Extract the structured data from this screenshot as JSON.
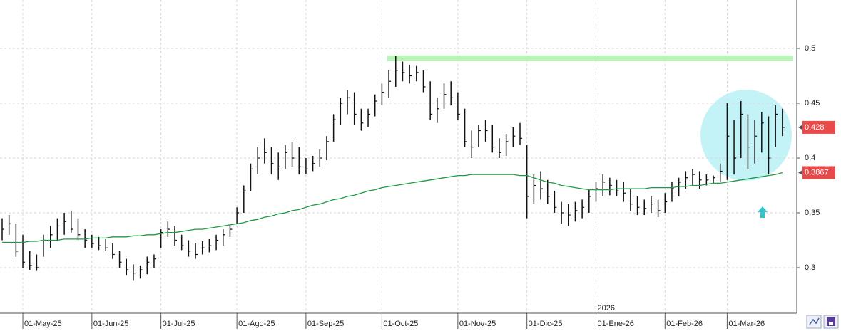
{
  "chart_data": {
    "type": "ohlc",
    "color": "#111111",
    "categories": [
      null,
      null,
      null,
      "01-May-25",
      null,
      null,
      null,
      null,
      null,
      null,
      null,
      null,
      null,
      "01-Jun-25",
      null,
      null,
      null,
      null,
      null,
      null,
      null,
      null,
      null,
      "01-Jul-25",
      null,
      null,
      null,
      null,
      null,
      null,
      null,
      null,
      null,
      null,
      "01-Ago-25",
      null,
      null,
      null,
      null,
      null,
      null,
      null,
      null,
      null,
      "01-Sep-25",
      null,
      null,
      null,
      null,
      null,
      null,
      null,
      null,
      null,
      null,
      "01-Oct-25",
      null,
      null,
      null,
      null,
      null,
      null,
      null,
      null,
      null,
      null,
      "01-Nov-25",
      null,
      null,
      null,
      null,
      null,
      null,
      null,
      null,
      null,
      "01-Dic-25",
      null,
      null,
      null,
      null,
      null,
      null,
      null,
      null,
      null,
      "01-Ene-26",
      null,
      null,
      null,
      null,
      null,
      null,
      null,
      null,
      null,
      "01-Feb-26",
      null,
      null,
      null,
      null,
      null,
      null,
      null,
      null,
      "01-Mar-26",
      null,
      null,
      null,
      null,
      null,
      null,
      null,
      null
    ],
    "high": [
      0.345,
      0.348,
      0.34,
      0.33,
      0.315,
      0.312,
      0.33,
      0.338,
      0.345,
      0.35,
      0.352,
      0.345,
      0.335,
      0.33,
      0.328,
      0.326,
      0.322,
      0.315,
      0.308,
      0.303,
      0.302,
      0.31,
      0.312,
      0.335,
      0.342,
      0.338,
      0.33,
      0.325,
      0.322,
      0.324,
      0.326,
      0.33,
      0.335,
      0.34,
      0.355,
      0.375,
      0.395,
      0.41,
      0.418,
      0.41,
      0.405,
      0.412,
      0.415,
      0.41,
      0.4,
      0.402,
      0.408,
      0.42,
      0.44,
      0.455,
      0.462,
      0.46,
      0.445,
      0.445,
      0.458,
      0.468,
      0.48,
      0.493,
      0.488,
      0.485,
      0.484,
      0.48,
      0.47,
      0.455,
      0.468,
      0.47,
      0.46,
      0.445,
      0.425,
      0.43,
      0.435,
      0.43,
      0.418,
      0.422,
      0.428,
      0.432,
      0.412,
      0.385,
      0.388,
      0.38,
      0.37,
      0.36,
      0.358,
      0.36,
      0.362,
      0.372,
      0.378,
      0.385,
      0.382,
      0.38,
      0.378,
      0.372,
      0.365,
      0.362,
      0.365,
      0.362,
      0.368,
      0.378,
      0.382,
      0.388,
      0.39,
      0.388,
      0.385,
      0.384,
      0.395,
      0.45,
      0.435,
      0.452,
      0.44,
      0.435,
      0.442,
      0.438,
      0.448,
      0.445
    ],
    "low": [
      0.325,
      0.33,
      0.31,
      0.3,
      0.298,
      0.297,
      0.31,
      0.318,
      0.325,
      0.33,
      0.332,
      0.325,
      0.318,
      0.318,
      0.316,
      0.315,
      0.308,
      0.3,
      0.293,
      0.288,
      0.29,
      0.294,
      0.3,
      0.318,
      0.328,
      0.32,
      0.316,
      0.31,
      0.308,
      0.312,
      0.314,
      0.316,
      0.32,
      0.328,
      0.34,
      0.35,
      0.37,
      0.385,
      0.395,
      0.385,
      0.38,
      0.39,
      0.392,
      0.385,
      0.385,
      0.388,
      0.392,
      0.398,
      0.415,
      0.43,
      0.44,
      0.43,
      0.425,
      0.428,
      0.438,
      0.448,
      0.455,
      0.465,
      0.47,
      0.468,
      0.47,
      0.46,
      0.435,
      0.432,
      0.445,
      0.448,
      0.435,
      0.41,
      0.4,
      0.41,
      0.415,
      0.405,
      0.4,
      0.402,
      0.41,
      0.412,
      0.345,
      0.358,
      0.362,
      0.358,
      0.35,
      0.34,
      0.338,
      0.342,
      0.345,
      0.35,
      0.36,
      0.365,
      0.366,
      0.365,
      0.36,
      0.352,
      0.348,
      0.348,
      0.35,
      0.346,
      0.35,
      0.36,
      0.365,
      0.372,
      0.375,
      0.372,
      0.375,
      0.376,
      0.378,
      0.38,
      0.385,
      0.4,
      0.39,
      0.395,
      0.405,
      0.385,
      0.41,
      0.42
    ],
    "close": [
      0.335,
      0.34,
      0.315,
      0.305,
      0.302,
      0.3,
      0.325,
      0.33,
      0.338,
      0.342,
      0.335,
      0.33,
      0.325,
      0.322,
      0.32,
      0.318,
      0.312,
      0.305,
      0.298,
      0.295,
      0.298,
      0.305,
      0.308,
      0.332,
      0.335,
      0.325,
      0.32,
      0.315,
      0.312,
      0.318,
      0.32,
      0.325,
      0.33,
      0.335,
      0.35,
      0.37,
      0.39,
      0.4,
      0.405,
      0.395,
      0.392,
      0.405,
      0.4,
      0.392,
      0.39,
      0.395,
      0.4,
      0.415,
      0.435,
      0.45,
      0.455,
      0.44,
      0.432,
      0.44,
      0.452,
      0.46,
      0.47,
      0.48,
      0.478,
      0.475,
      0.478,
      0.465,
      0.44,
      0.445,
      0.458,
      0.455,
      0.44,
      0.415,
      0.41,
      0.425,
      0.425,
      0.41,
      0.405,
      0.415,
      0.42,
      0.418,
      0.365,
      0.375,
      0.372,
      0.365,
      0.355,
      0.35,
      0.348,
      0.352,
      0.355,
      0.365,
      0.372,
      0.378,
      0.375,
      0.37,
      0.368,
      0.358,
      0.355,
      0.354,
      0.358,
      0.352,
      0.36,
      0.372,
      0.378,
      0.382,
      0.385,
      0.38,
      0.38,
      0.382,
      0.388,
      0.42,
      0.4,
      0.44,
      0.41,
      0.42,
      0.432,
      0.4,
      0.44,
      0.428
    ],
    "last_close_label": "0,428",
    "ma": {
      "color": "#1e9a46",
      "last_label": "0,3867",
      "values": [
        0.323,
        0.323,
        0.323,
        0.323,
        0.324,
        0.324,
        0.325,
        0.325,
        0.325,
        0.326,
        0.326,
        0.326,
        0.326,
        0.327,
        0.327,
        0.327,
        0.328,
        0.328,
        0.328,
        0.329,
        0.329,
        0.33,
        0.33,
        0.331,
        0.332,
        0.332,
        0.333,
        0.334,
        0.335,
        0.335,
        0.336,
        0.337,
        0.338,
        0.339,
        0.34,
        0.341,
        0.343,
        0.344,
        0.346,
        0.347,
        0.349,
        0.35,
        0.352,
        0.353,
        0.355,
        0.357,
        0.358,
        0.36,
        0.362,
        0.363,
        0.365,
        0.366,
        0.368,
        0.37,
        0.371,
        0.373,
        0.374,
        0.375,
        0.376,
        0.377,
        0.378,
        0.379,
        0.38,
        0.381,
        0.382,
        0.383,
        0.384,
        0.384,
        0.385,
        0.385,
        0.385,
        0.385,
        0.385,
        0.385,
        0.385,
        0.384,
        0.384,
        0.382,
        0.38,
        0.378,
        0.377,
        0.375,
        0.374,
        0.373,
        0.372,
        0.371,
        0.371,
        0.371,
        0.371,
        0.372,
        0.372,
        0.372,
        0.372,
        0.372,
        0.373,
        0.373,
        0.373,
        0.373,
        0.374,
        0.374,
        0.375,
        0.375,
        0.376,
        0.377,
        0.377,
        0.378,
        0.379,
        0.38,
        0.381,
        0.382,
        0.383,
        0.384,
        0.385,
        0.3867
      ]
    },
    "resistance": {
      "value": 0.491,
      "color": "#b9f5b9"
    },
    "year_label": "2026",
    "year_index": 86,
    "ylim": [
      0.2584,
      0.5442
    ],
    "yticks": [
      {
        "value": 0.3,
        "label": "0,3"
      },
      {
        "value": 0.35,
        "label": "0,35"
      },
      {
        "value": 0.4,
        "label": "0,4"
      },
      {
        "value": 0.45,
        "label": "0,45"
      },
      {
        "value": 0.5,
        "label": "0,5"
      }
    ],
    "grid": true
  }
}
